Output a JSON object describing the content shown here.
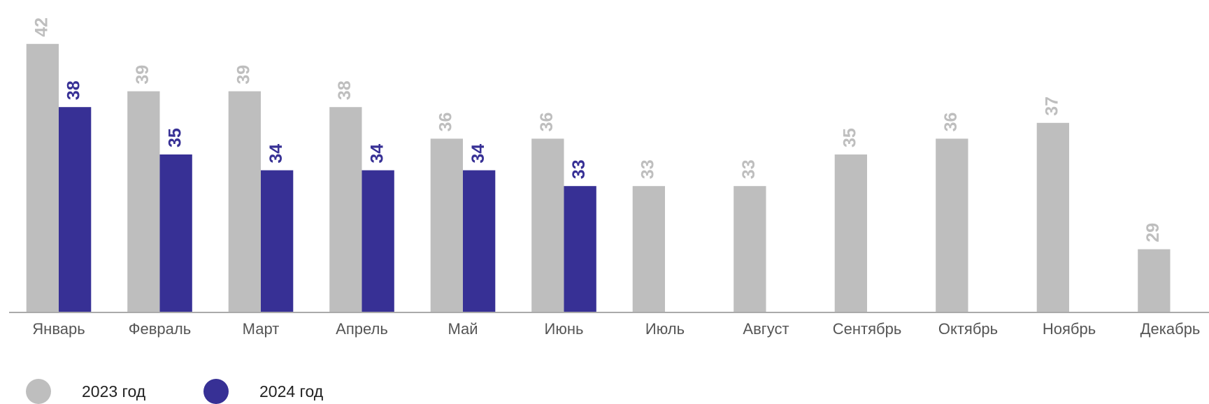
{
  "chart_data": {
    "type": "bar",
    "categories": [
      "Январь",
      "Февраль",
      "Март",
      "Апрель",
      "Май",
      "Июнь",
      "Июль",
      "Август",
      "Сентябрь",
      "Октябрь",
      "Ноябрь",
      "Декабрь"
    ],
    "series": [
      {
        "name": "2023 год",
        "color": "#bebebe",
        "values": [
          42,
          39,
          39,
          38,
          36,
          36,
          33,
          33,
          35,
          36,
          37,
          29
        ]
      },
      {
        "name": "2024 год",
        "color": "#373095",
        "values": [
          38,
          35,
          34,
          34,
          34,
          33,
          null,
          null,
          null,
          null,
          null,
          null
        ]
      }
    ],
    "ylim": [
      25,
      45
    ],
    "legend": "bottom-left"
  }
}
